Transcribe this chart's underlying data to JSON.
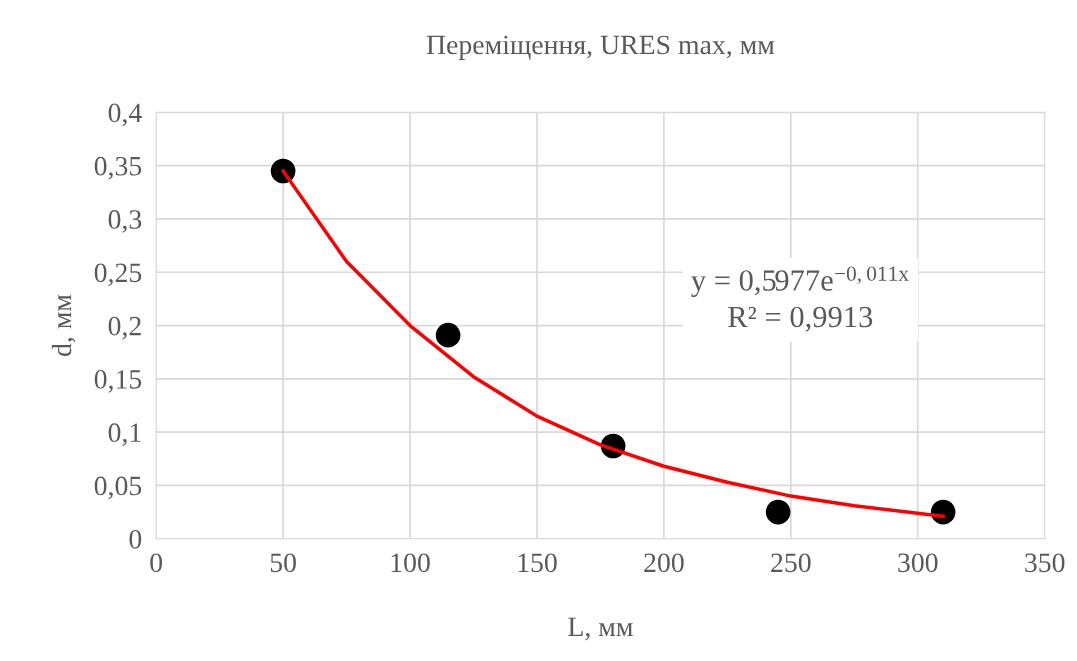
{
  "chart_data": {
    "type": "scatter",
    "title": "Переміщення, URES max, мм",
    "xlabel": "L, мм",
    "ylabel": "d, мм",
    "x": [
      50,
      115,
      180,
      245,
      310
    ],
    "series": [
      {
        "color": "#000000",
        "marker": "circle",
        "values": [
          0.345,
          0.191,
          0.087,
          0.025,
          0.025
        ]
      },
      {
        "type": "line",
        "color": "#ff0000",
        "line_style": "solid",
        "x": [
          50,
          75,
          100,
          125,
          150,
          175,
          200,
          225,
          250,
          275,
          310
        ],
        "values": [
          0.345,
          0.26,
          0.2,
          0.152,
          0.115,
          0.088,
          0.068,
          0.053,
          0.04,
          0.031,
          0.021
        ]
      }
    ],
    "annotations": [
      "y = 0,5977e$^{−0,011x}$\nR² = 0,9913"
    ],
    "xlim": [
      0,
      350
    ],
    "xticks": [
      0,
      50,
      100,
      150,
      200,
      250,
      300,
      350
    ],
    "ylim": [
      0,
      0.4
    ],
    "yticks": [
      0,
      {
        "value": 0.05,
        "label": "0,05"
      },
      {
        "value": 0.1,
        "label": "0,1"
      },
      {
        "value": 0.15,
        "label": "0,15"
      },
      {
        "value": 0.2,
        "label": "0,2"
      },
      {
        "value": 0.25,
        "label": "0,25"
      },
      {
        "value": 0.3,
        "label": "0,3"
      },
      {
        "value": 0.35,
        "label": "0,35"
      },
      {
        "value": 0.4,
        "label": "0,4"
      }
    ],
    "grid": true,
    "legend": false
  }
}
